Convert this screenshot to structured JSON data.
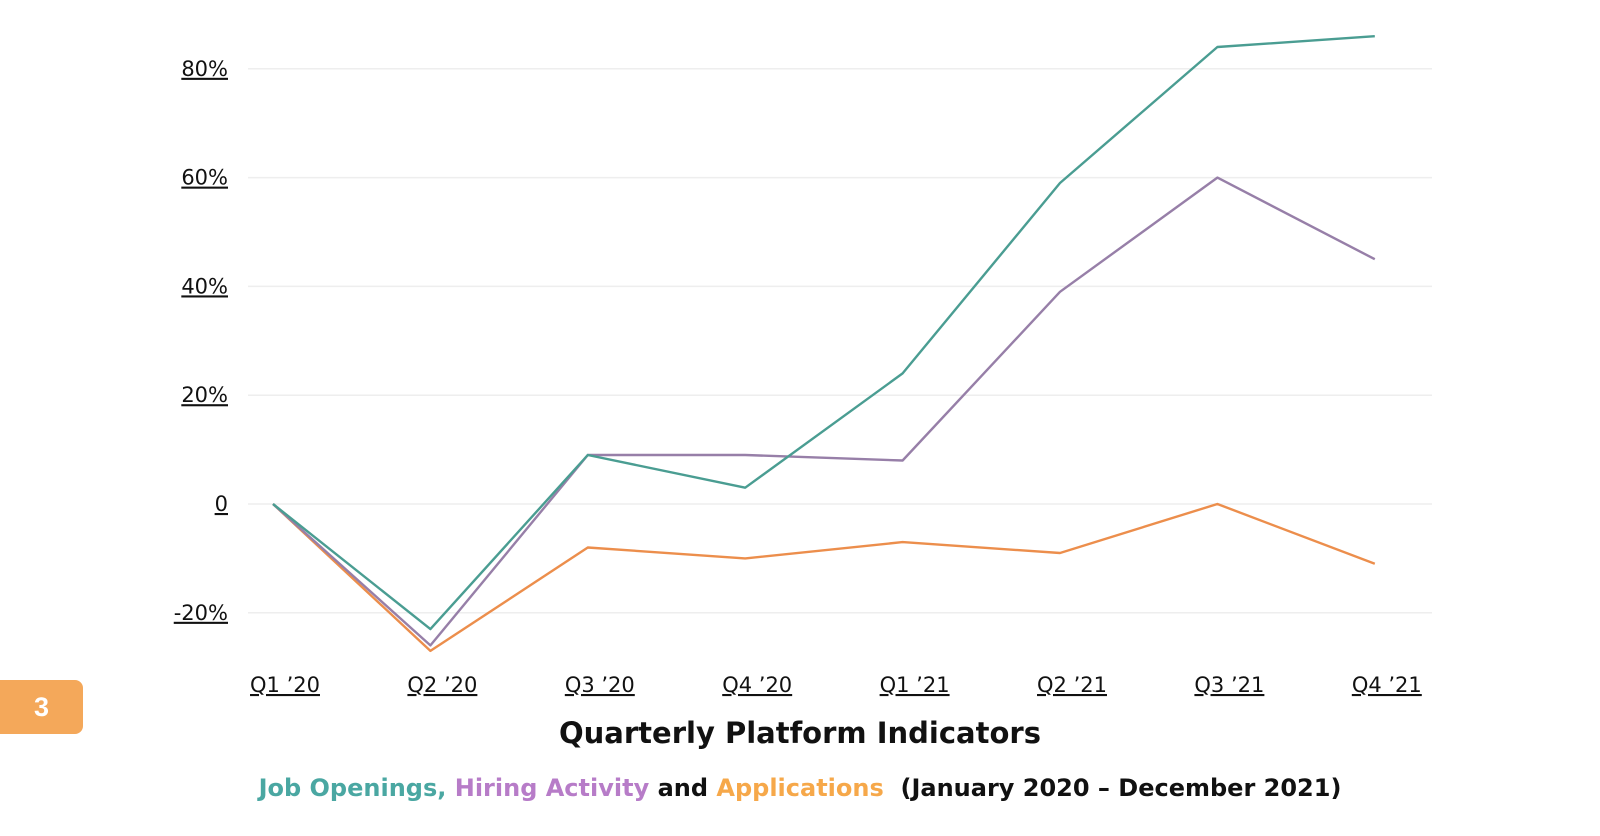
{
  "page_number": "3",
  "colors": {
    "job_openings": "#4a9d92",
    "hiring_activity": "#977fa8",
    "applications": "#ec8e4c",
    "legend_job_openings": "#4aa7a2",
    "legend_hiring_activity": "#b77cc8",
    "legend_applications": "#f6a84a",
    "gridline": "#eeeeee",
    "badge": "#f4a85a"
  },
  "legend_text": {
    "job_openings": "Job Openings, ",
    "hiring_activity": "Hiring Activity",
    "connector": " and ",
    "applications": "Applications",
    "date_range": "  (January 2020 – December 2021)"
  },
  "chart_data": {
    "type": "line",
    "title": "Quarterly Platform Indicators",
    "categories": [
      "Q1 ’20",
      "Q2 ’20",
      "Q3 ’20",
      "Q4 ’20",
      "Q1 ’21",
      "Q2 ’21",
      "Q3 ’21",
      "Q4 ’21"
    ],
    "ytick_labels": [
      "80%",
      "60%",
      "40%",
      "20%",
      "0",
      "-20%"
    ],
    "yticks": [
      80,
      60,
      40,
      20,
      0,
      -20
    ],
    "ylim": [
      -27,
      86
    ],
    "grid": true,
    "series": [
      {
        "name": "Job Openings",
        "values": [
          0,
          -23,
          9,
          3,
          24,
          59,
          84,
          86
        ]
      },
      {
        "name": "Hiring Activity",
        "values": [
          0,
          -26,
          9,
          9,
          8,
          39,
          60,
          45
        ]
      },
      {
        "name": "Applications",
        "values": [
          0,
          -27,
          -8,
          -10,
          -7,
          -9,
          0,
          -11
        ]
      }
    ]
  }
}
